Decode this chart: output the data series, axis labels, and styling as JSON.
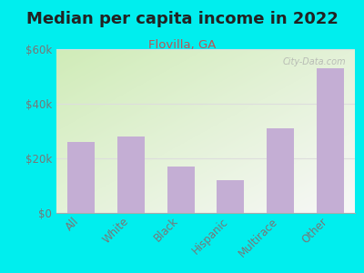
{
  "title": "Median per capita income in 2022",
  "subtitle": "Flovilla, GA",
  "categories": [
    "All",
    "White",
    "Black",
    "Hispanic",
    "Multirace",
    "Other"
  ],
  "values": [
    26000,
    28000,
    17000,
    12000,
    31000,
    53000
  ],
  "bar_color": "#c4aed4",
  "background_outer": "#00eeee",
  "grad_top_left": "#d0ecb8",
  "grad_bottom_right": "#f8f8f8",
  "title_color": "#222222",
  "subtitle_color": "#bb5555",
  "tick_color": "#777777",
  "grid_color": "#dddddd",
  "ylim": [
    0,
    60000
  ],
  "yticks": [
    0,
    20000,
    40000,
    60000
  ],
  "ytick_labels": [
    "$0",
    "$20k",
    "$40k",
    "$60k"
  ],
  "watermark": "City-Data.com",
  "title_fontsize": 13,
  "subtitle_fontsize": 9.5,
  "tick_fontsize": 8.5
}
